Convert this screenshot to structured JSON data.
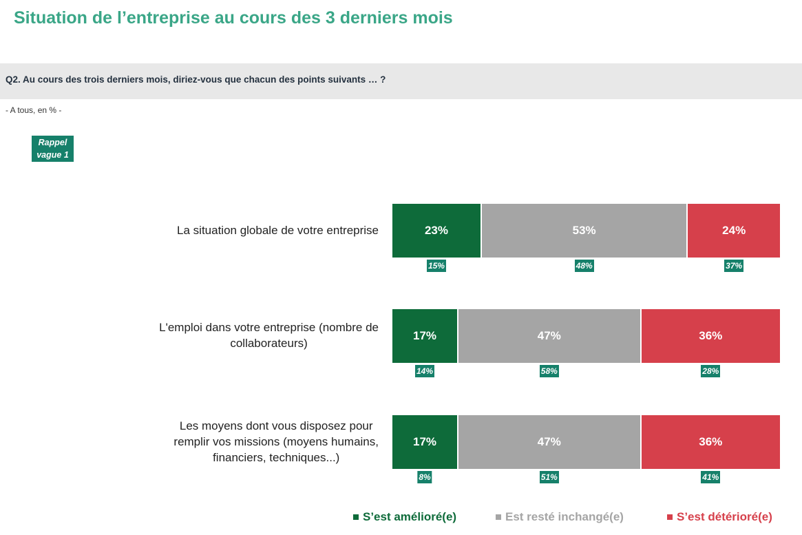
{
  "title": "Situation de l’entreprise au cours des 3 derniers mois",
  "question": "Q2. Au cours des trois derniers mois, diriez-vous que chacun des points suivants … ?",
  "base_note": "- A tous, en % -",
  "rappel": {
    "line1": "Rappel",
    "line2": "vague 1"
  },
  "colors": {
    "improved": "#0e6b3a",
    "unchanged": "#a5a5a5",
    "worsened": "#d6404b",
    "wave_badge": "#16806a",
    "title": "#3aa687"
  },
  "chart_data": {
    "type": "bar",
    "orientation": "horizontal-stacked-100",
    "categories": [
      "La situation globale de votre entreprise",
      "L'emploi dans votre entreprise (nombre de collaborateurs)",
      "Les moyens dont vous disposez pour remplir vos missions (moyens humains, financiers, techniques...)"
    ],
    "category_lines": [
      [
        "La situation globale de votre entreprise"
      ],
      [
        "L'emploi dans votre entreprise (nombre de",
        "collaborateurs)"
      ],
      [
        "Les moyens dont vous disposez pour",
        "remplir vos missions (moyens humains,",
        "financiers, techniques...)"
      ]
    ],
    "series": [
      {
        "name": "S’est amélioré(e)",
        "values": [
          23,
          17,
          17
        ],
        "labels": [
          "23%",
          "17%",
          "17%"
        ],
        "wave1": [
          "15%",
          "14%",
          "8%"
        ]
      },
      {
        "name": "Est resté inchangé(e)",
        "values": [
          53,
          47,
          47
        ],
        "labels": [
          "53%",
          "47%",
          "47%"
        ],
        "wave1": [
          "48%",
          "58%",
          "51%"
        ]
      },
      {
        "name": "S’est détérioré(e)",
        "values": [
          24,
          36,
          36
        ],
        "labels": [
          "24%",
          "36%",
          "36%"
        ],
        "wave1": [
          "37%",
          "28%",
          "41%"
        ]
      }
    ],
    "unit": "%",
    "legend_position": "bottom-right"
  }
}
